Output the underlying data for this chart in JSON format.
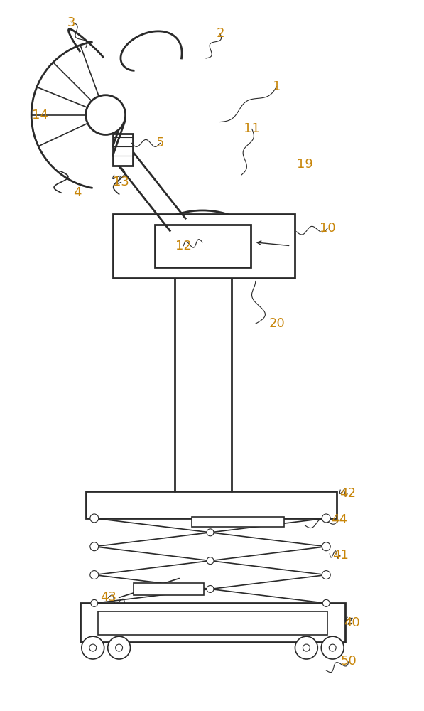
{
  "bg_color": "#ffffff",
  "line_color": "#2a2a2a",
  "label_color": "#c8860a",
  "figsize": [
    5.97,
    10.0
  ],
  "dpi": 100
}
